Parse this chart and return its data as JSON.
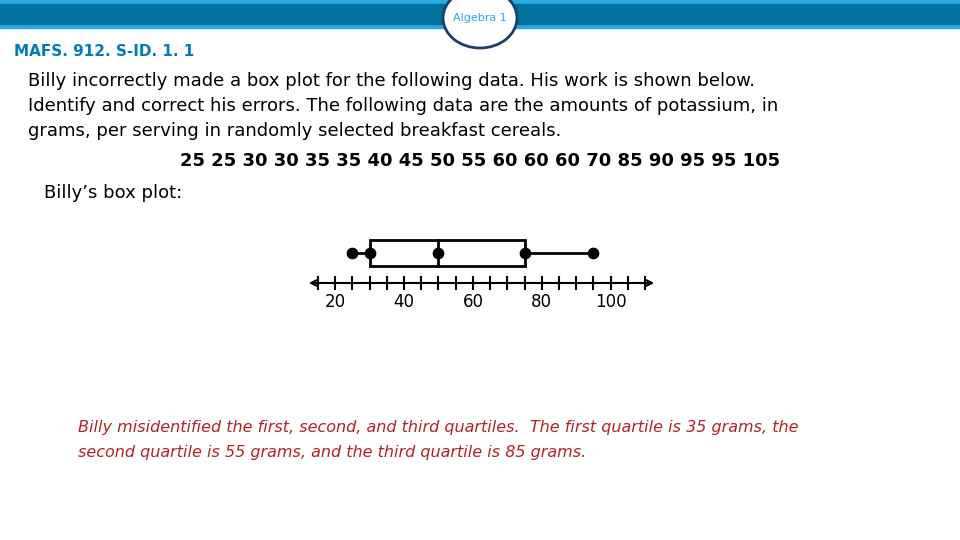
{
  "title_circle": "Algebra 1",
  "subtitle": "MAFS. 912. S-ID. 1. 1",
  "body_text_line1": "Billy incorrectly made a box plot for the following data. His work is shown below.",
  "body_text_line2": "Identify and correct his errors. The following data are the amounts of potassium, in",
  "body_text_line3": "grams, per serving in randomly selected breakfast cereals.",
  "data_line": "25 25 30 30 35 35 40 45 50 55 60 60 60 70 85 90 95 95 105",
  "billys_label": "Billy’s box plot:",
  "answer_line1": "Billy misidentified the first, second, and third quartiles.  The first quartile is 35 grams, the",
  "answer_line2": "second quartile is 55 grams, and the third quartile is 85 grams.",
  "header_bar_color_light": "#29ABE2",
  "header_bar_color_dark": "#0072A0",
  "circle_edge_color": "#1C3E6E",
  "circle_text_color": "#29ABE2",
  "subtitle_color": "#007DB5",
  "body_color": "#000000",
  "answer_color": "#B22222",
  "bg_color": "#FFFFFF",
  "boxplot_min": 25,
  "boxplot_q1": 30,
  "boxplot_median": 50,
  "boxplot_q3": 75,
  "boxplot_max": 95,
  "numberline_min": 15,
  "numberline_max": 110,
  "numberline_tick_step": 5,
  "numberline_label_vals": [
    20,
    40,
    60,
    80,
    100
  ]
}
